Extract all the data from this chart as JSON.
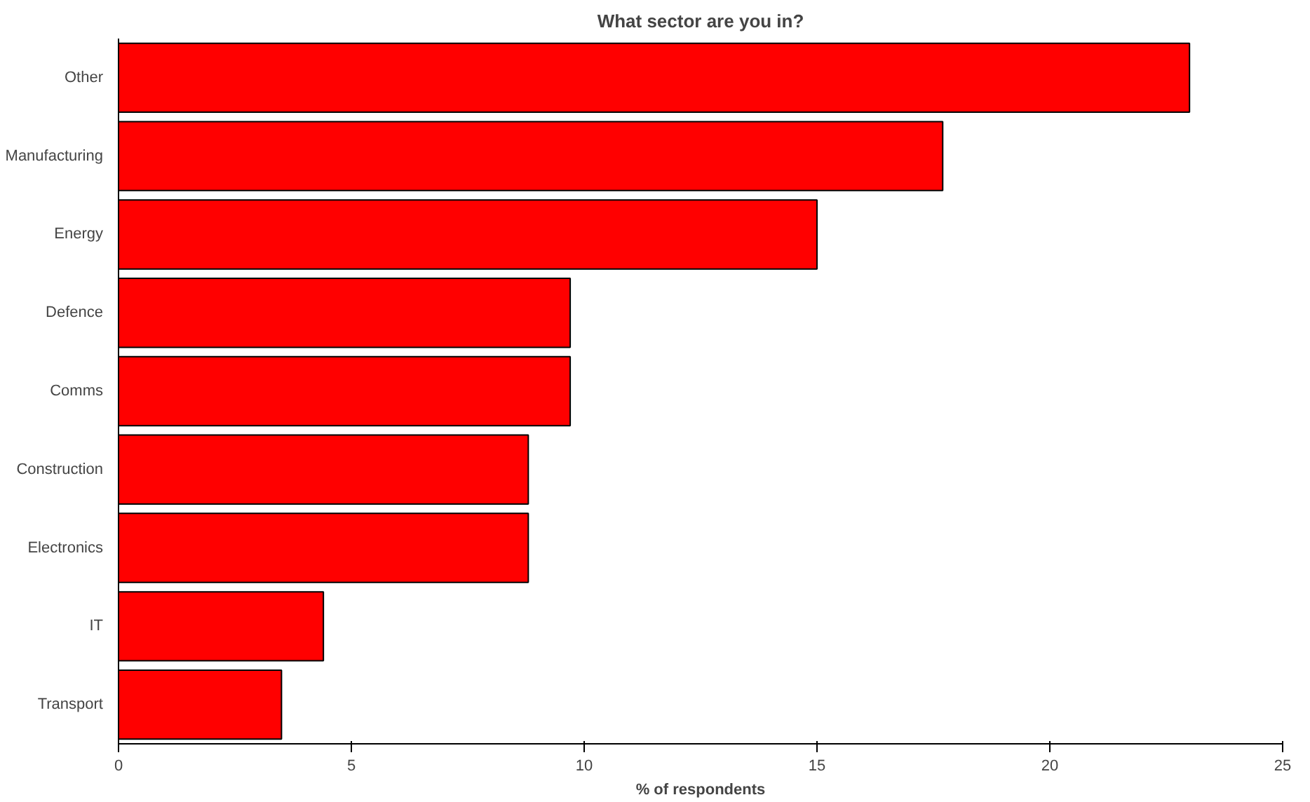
{
  "chart_data": {
    "type": "bar",
    "orientation": "horizontal",
    "title": "What sector are you in?",
    "xlabel": "% of respondents",
    "categories": [
      "Other",
      "Manufacturing",
      "Energy",
      "Defence",
      "Comms",
      "Construction",
      "Electronics",
      "IT",
      "Transport"
    ],
    "values": [
      23.0,
      17.7,
      15.0,
      9.7,
      9.7,
      8.8,
      8.8,
      4.4,
      3.5
    ],
    "color": "#ff0000",
    "xlim": [
      0,
      25
    ],
    "xticks": [
      0,
      5,
      10,
      15,
      20,
      25
    ],
    "grid": false
  }
}
